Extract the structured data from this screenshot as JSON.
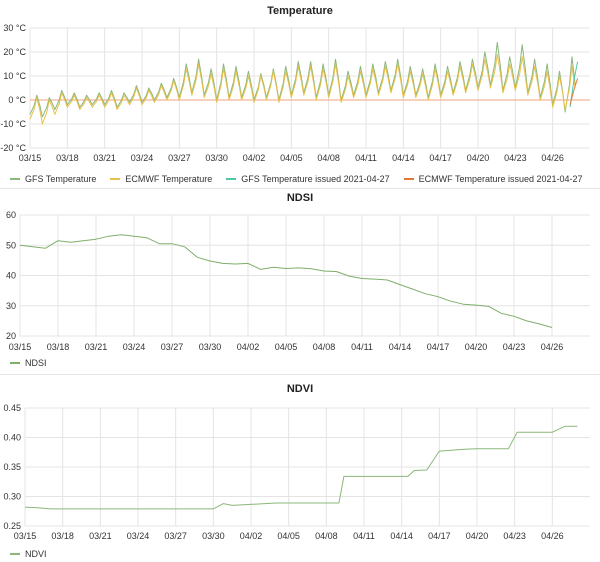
{
  "colors": {
    "gfs": "#8ab77a",
    "ecmwf": "#e8c04a",
    "gfs_issued": "#4fc9a8",
    "ecmwf_issued": "#e07a3c",
    "ndsi": "#7fae6a",
    "ndvi": "#8ab77a",
    "grid": "#e4e4e4",
    "zero_line": "#f2a37c"
  },
  "chart_data": [
    {
      "id": "temperature",
      "type": "line",
      "title": "Temperature",
      "x_ticks": [
        "03/15",
        "03/18",
        "03/21",
        "03/24",
        "03/27",
        "03/30",
        "04/02",
        "04/05",
        "04/08",
        "04/11",
        "04/14",
        "04/17",
        "04/20",
        "04/23",
        "04/26"
      ],
      "x_range": [
        0,
        45
      ],
      "y_ticks": [
        "30 °C",
        "20 °C",
        "10 °C",
        "0 °C",
        "-10 °C",
        "-20 °C"
      ],
      "ylim": [
        -20,
        30
      ],
      "grid": true,
      "legend_position": "bottom-left",
      "series": [
        {
          "name": "GFS Temperature",
          "color_key": "gfs",
          "x": [
            0,
            1,
            2,
            3,
            4,
            5,
            6,
            7,
            8,
            9,
            10,
            11,
            12,
            13,
            14,
            15,
            16,
            17,
            18,
            19,
            20,
            21,
            22,
            23,
            24,
            25,
            26,
            27,
            28,
            29,
            30,
            31,
            32,
            33,
            34,
            35,
            36,
            37,
            38,
            39,
            40,
            41,
            42,
            43
          ],
          "high": [
            2,
            1,
            4,
            3,
            2,
            3,
            4,
            3,
            6,
            5,
            7,
            9,
            15,
            17,
            13,
            15,
            14,
            12,
            11,
            13,
            14,
            16,
            16,
            15,
            17,
            12,
            14,
            15,
            16,
            17,
            14,
            13,
            15,
            14,
            16,
            17,
            20,
            24,
            18,
            23,
            17,
            15,
            12,
            18
          ],
          "low": [
            -6,
            -7,
            -4,
            -2,
            -3,
            -2,
            -2,
            -3,
            -1,
            -1,
            0,
            1,
            1,
            3,
            2,
            0,
            1,
            1,
            0,
            1,
            0,
            2,
            3,
            1,
            2,
            0,
            2,
            2,
            3,
            4,
            2,
            2,
            1,
            2,
            3,
            4,
            5,
            6,
            4,
            5,
            3,
            1,
            -2,
            -5
          ]
        },
        {
          "name": "ECMWF Temperature",
          "color_key": "ecmwf",
          "x": [
            0,
            1,
            2,
            3,
            4,
            5,
            6,
            7,
            8,
            9,
            10,
            11,
            12,
            13,
            14,
            15,
            16,
            17,
            18,
            19,
            20,
            21,
            22,
            23,
            24,
            25,
            26,
            27,
            28,
            29,
            30,
            31,
            32,
            33,
            34,
            35,
            36,
            37,
            38,
            39,
            40,
            41,
            42,
            43
          ],
          "high": [
            1,
            0,
            3,
            2,
            1,
            2,
            3,
            2,
            5,
            4,
            6,
            8,
            13,
            15,
            11,
            13,
            12,
            10,
            10,
            12,
            12,
            14,
            14,
            13,
            15,
            10,
            12,
            13,
            14,
            15,
            12,
            11,
            13,
            12,
            14,
            15,
            17,
            19,
            15,
            18,
            14,
            12,
            10,
            14
          ],
          "low": [
            -8,
            -10,
            -6,
            -3,
            -4,
            -3,
            -3,
            -4,
            -2,
            -2,
            -1,
            0,
            0,
            2,
            1,
            -1,
            0,
            0,
            -1,
            0,
            -1,
            1,
            2,
            0,
            1,
            -1,
            1,
            1,
            2,
            3,
            1,
            1,
            0,
            1,
            2,
            3,
            4,
            5,
            3,
            4,
            2,
            0,
            -3,
            -4
          ]
        },
        {
          "name": "GFS Temperature issued 2021-04-27",
          "color_key": "gfs_issued",
          "x": [
            43.4,
            43.7,
            44.0
          ],
          "y": [
            -3,
            8,
            16
          ]
        },
        {
          "name": "ECMWF Temperature issued 2021-04-27",
          "color_key": "ecmwf_issued",
          "x": [
            43.4,
            43.7,
            44.0
          ],
          "y": [
            -2,
            4,
            9
          ]
        }
      ]
    },
    {
      "id": "ndsi",
      "type": "line",
      "title": "NDSI",
      "x_ticks": [
        "03/15",
        "03/18",
        "03/21",
        "03/24",
        "03/27",
        "03/30",
        "04/02",
        "04/05",
        "04/08",
        "04/11",
        "04/14",
        "04/17",
        "04/20",
        "04/23",
        "04/26"
      ],
      "x_range": [
        0,
        45
      ],
      "y_ticks": [
        "60",
        "50",
        "40",
        "30",
        "20"
      ],
      "ylim": [
        20,
        60
      ],
      "grid": true,
      "legend_position": "bottom-left",
      "series": [
        {
          "name": "NDSI",
          "color_key": "ndsi",
          "x": [
            0,
            2,
            3,
            4,
            6,
            7,
            8,
            9,
            10,
            11,
            12,
            13,
            14,
            15,
            16,
            17,
            18,
            19,
            20,
            21,
            22,
            23,
            24,
            25,
            26,
            27,
            28,
            29,
            30,
            31,
            32,
            33,
            34,
            35,
            36,
            37,
            38,
            39,
            40,
            41,
            42
          ],
          "y": [
            50,
            49,
            51.5,
            51,
            52,
            53,
            53.5,
            53,
            52.5,
            50.5,
            50.5,
            49.5,
            46,
            44.8,
            44,
            43.8,
            44,
            42,
            42.7,
            42.3,
            42.5,
            42.2,
            41.5,
            41.3,
            39.8,
            39,
            38.8,
            38.5,
            37,
            35.5,
            34,
            33,
            31.5,
            30.5,
            30.2,
            29.8,
            27.5,
            26.5,
            25,
            24,
            22.8
          ]
        }
      ]
    },
    {
      "id": "ndvi",
      "type": "line",
      "title": "NDVI",
      "x_ticks": [
        "03/15",
        "03/18",
        "03/21",
        "03/24",
        "03/27",
        "03/30",
        "04/02",
        "04/05",
        "04/08",
        "04/11",
        "04/14",
        "04/17",
        "04/20",
        "04/23",
        "04/26"
      ],
      "x_range": [
        0,
        45
      ],
      "y_ticks": [
        "0.45",
        "0.40",
        "0.35",
        "0.30",
        "0.25"
      ],
      "ylim": [
        0.25,
        0.45
      ],
      "grid": true,
      "legend_position": "bottom-left",
      "series": [
        {
          "name": "NDVI",
          "color_key": "ndvi",
          "x": [
            0,
            1,
            2,
            14,
            15,
            15.8,
            16.5,
            20,
            22,
            25,
            25.4,
            29,
            30.5,
            31,
            32,
            33,
            35,
            36,
            38.5,
            39.2,
            42,
            43,
            44
          ],
          "y": [
            0.282,
            0.281,
            0.279,
            0.279,
            0.279,
            0.288,
            0.285,
            0.289,
            0.289,
            0.289,
            0.334,
            0.334,
            0.334,
            0.344,
            0.345,
            0.377,
            0.38,
            0.381,
            0.381,
            0.409,
            0.409,
            0.419,
            0.419
          ]
        }
      ]
    }
  ]
}
